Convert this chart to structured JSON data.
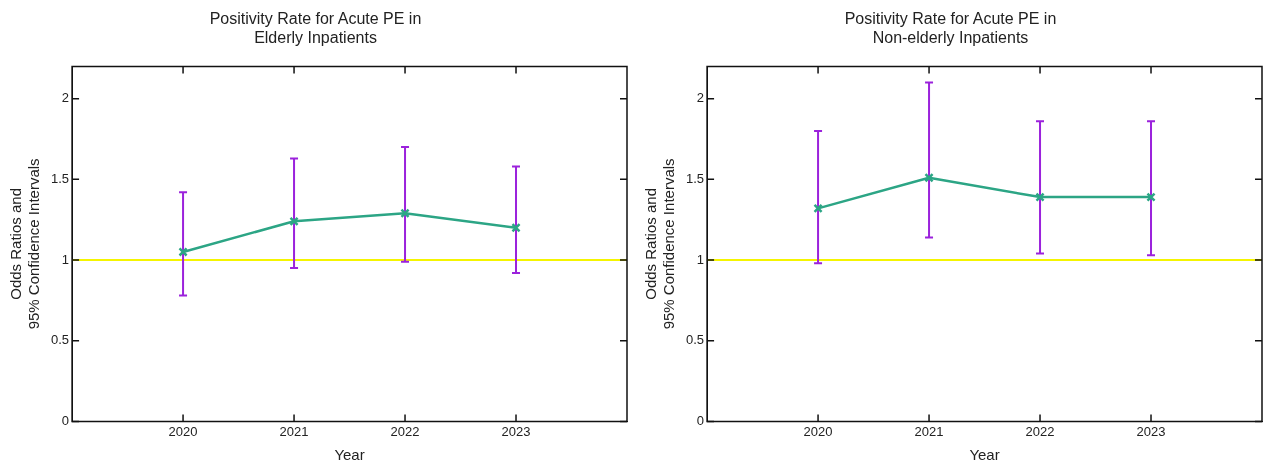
{
  "chart_data": [
    {
      "type": "line",
      "title": "Positivity Rate for Acute PE in\nElderly Inpatients",
      "xlabel": "Year",
      "ylabel": "Odds Ratios and\n95% Confidence Intervals",
      "x": [
        2020,
        2021,
        2022,
        2023
      ],
      "series": [
        {
          "color": "#2ca585",
          "values": [
            1.05,
            1.24,
            1.29,
            1.2
          ],
          "errors": [
            [
              0.78,
              1.42
            ],
            [
              0.95,
              1.63
            ],
            [
              0.99,
              1.7
            ],
            [
              0.92,
              1.58
            ]
          ]
        }
      ],
      "xlim": [
        2019,
        2024
      ],
      "xticks": [
        2020,
        2021,
        2022,
        2023
      ],
      "ylim": [
        0,
        2.2
      ],
      "yticks": [
        0,
        0.5,
        1,
        1.5,
        2
      ],
      "ref_lines": [
        {
          "axis": "y",
          "value": 1,
          "color": "#f5f500"
        }
      ],
      "marker": "cross",
      "grid": false,
      "legend": false
    },
    {
      "type": "line",
      "title": "Positivity Rate for Acute PE in\nNon-elderly Inpatients",
      "xlabel": "Year",
      "ylabel": "Odds Ratios and\n95% Confidence Intervals",
      "x": [
        2020,
        2021,
        2022,
        2023
      ],
      "series": [
        {
          "color": "#2ca585",
          "values": [
            1.32,
            1.51,
            1.39,
            1.39
          ],
          "errors": [
            [
              0.98,
              1.8
            ],
            [
              1.14,
              2.1
            ],
            [
              1.04,
              1.86
            ],
            [
              1.03,
              1.86
            ]
          ]
        }
      ],
      "xlim": [
        2019,
        2024
      ],
      "xticks": [
        2020,
        2021,
        2022,
        2023
      ],
      "ylim": [
        0,
        2.2
      ],
      "yticks": [
        0,
        0.5,
        1,
        1.5,
        2
      ],
      "ref_lines": [
        {
          "axis": "y",
          "value": 1,
          "color": "#f5f500"
        }
      ],
      "marker": "cross",
      "grid": false,
      "legend": false
    }
  ]
}
